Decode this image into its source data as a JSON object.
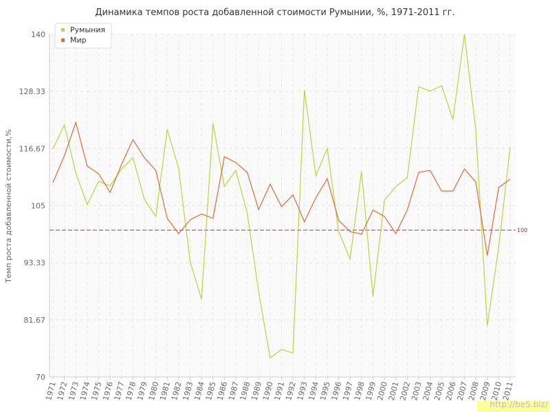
{
  "chart_data": {
    "type": "line",
    "title": "Динамика темпов роста добавленной стоимости Румынии, %, 1971-2011 гг.",
    "y_label": "Темп роста добавленной стоимости,%",
    "categories": [
      "1971",
      "1972",
      "1973",
      "1974",
      "1975",
      "1976",
      "1977",
      "1978",
      "1979",
      "1980",
      "1981",
      "1982",
      "1983",
      "1984",
      "1985",
      "1986",
      "1987",
      "1988",
      "1989",
      "1990",
      "1991",
      "1992",
      "1993",
      "1994",
      "1995",
      "1996",
      "1997",
      "1998",
      "1999",
      "2000",
      "2001",
      "2002",
      "2003",
      "2004",
      "2005",
      "2006",
      "2007",
      "2008",
      "2009",
      "2010",
      "2011"
    ],
    "series": [
      {
        "name": "Румыния",
        "color": "#b5d63d",
        "values": [
          116.6,
          121.5,
          111.7,
          105.2,
          110,
          109,
          112.5,
          114.8,
          106.3,
          102.8,
          120.6,
          112.6,
          93.6,
          85.9,
          121.8,
          108.9,
          112.2,
          103.5,
          87.4,
          73.9,
          75.6,
          74.9,
          128.6,
          111.1,
          116.7,
          99.7,
          94.1,
          112,
          86.4,
          106.1,
          108.9,
          110.7,
          129.3,
          128.4,
          129.5,
          122.6,
          140,
          120.4,
          80.5,
          96.5,
          116.9
        ]
      },
      {
        "name": "Мир",
        "color": "#e0693a",
        "values": [
          109.7,
          115.2,
          122,
          113.1,
          111.5,
          107.7,
          113.4,
          118.5,
          114.8,
          112.2,
          102.4,
          99.3,
          102.1,
          103.3,
          102.4,
          115,
          113.8,
          111.8,
          104.2,
          109.4,
          104.8,
          107.2,
          101.7,
          106.6,
          110.5,
          102,
          99.7,
          99.2,
          104.1,
          102.8,
          99.3,
          104.1,
          111.8,
          112.2,
          108,
          108,
          112.5,
          109.8,
          94.8,
          108.7,
          110.4
        ]
      }
    ],
    "ylim": [
      70,
      140
    ],
    "yticks": [
      70,
      81.67,
      93.33,
      105,
      116.67,
      128.33,
      140
    ],
    "grid": true,
    "reference_line": {
      "value": 100,
      "label": "100",
      "color": "#a03050"
    },
    "watermark": "http://be5.biz/"
  }
}
